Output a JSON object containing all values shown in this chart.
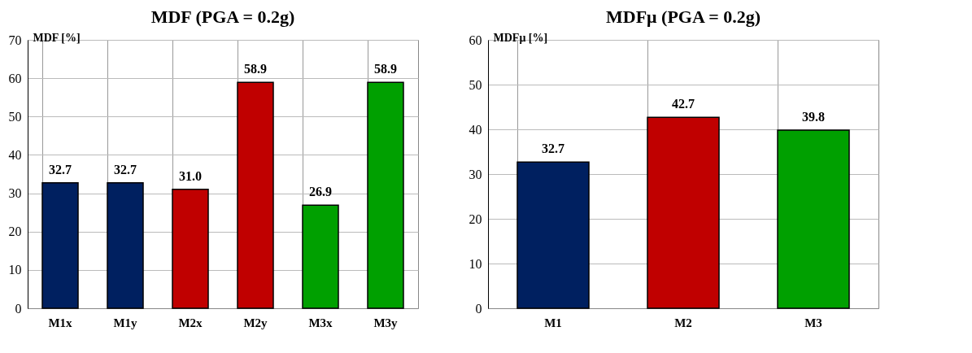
{
  "chart_data": [
    {
      "type": "bar",
      "title": "MDF (PGA = 0.2g)",
      "ylabel": "MDF [%]",
      "categories": [
        "M1x",
        "M1y",
        "M2x",
        "M2y",
        "M3x",
        "M3y"
      ],
      "values": [
        32.7,
        32.7,
        31.0,
        58.9,
        26.9,
        58.9
      ],
      "value_labels": [
        "32.7",
        "32.7",
        "31.0",
        "58.9",
        "26.9",
        "58.9"
      ],
      "colors": [
        "#002060",
        "#002060",
        "#c00000",
        "#c00000",
        "#00a000",
        "#00a000"
      ],
      "ylim": [
        0,
        70
      ],
      "yticks": [
        0,
        10,
        20,
        30,
        40,
        50,
        60,
        70
      ],
      "grid": true
    },
    {
      "type": "bar",
      "title": "MDFμ (PGA = 0.2g)",
      "ylabel": "MDFμ [%]",
      "categories": [
        "M1",
        "M2",
        "M3"
      ],
      "values": [
        32.7,
        42.7,
        39.8
      ],
      "value_labels": [
        "32.7",
        "42.7",
        "39.8"
      ],
      "colors": [
        "#002060",
        "#c00000",
        "#00a000"
      ],
      "ylim": [
        0,
        60
      ],
      "yticks": [
        0,
        10,
        20,
        30,
        40,
        50,
        60
      ],
      "grid": true
    }
  ]
}
